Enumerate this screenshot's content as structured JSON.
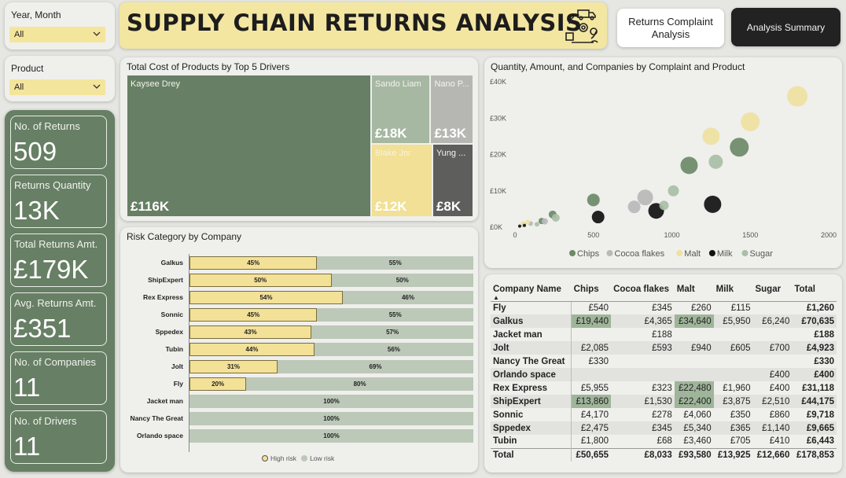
{
  "filters": {
    "year_month": {
      "label": "Year, Month",
      "value": "All"
    },
    "product": {
      "label": "Product",
      "value": "All"
    }
  },
  "header": {
    "title": "SUPPLY CHAIN RETURNS ANALYSIS",
    "icon": "supply-chain-icon"
  },
  "nav": {
    "complaint": "Returns Complaint Analysis",
    "summary": "Analysis Summary"
  },
  "kpis": [
    {
      "label": "No. of Returns",
      "value": "509"
    },
    {
      "label": "Returns Quantity",
      "value": "13K"
    },
    {
      "label": "Total Returns Amt.",
      "value": "£179K"
    },
    {
      "label": "Avg. Returns Amt.",
      "value": "£351"
    },
    {
      "label": "No. of Companies",
      "value": "11"
    },
    {
      "label": "No. of Drivers",
      "value": "11"
    }
  ],
  "colors": {
    "accent": "#677f64",
    "highlight": "#f3e197",
    "low": "#bcc8b8",
    "chips": "#6b8a68",
    "cocoa": "#b9b9b9",
    "malt": "#efe19f",
    "milk": "#111111",
    "sugar": "#a9bfa6"
  },
  "chart_data": [
    {
      "type": "treemap",
      "title": "Total Cost of Products by Top 5 Drivers",
      "items": [
        {
          "name": "Kaysee Drey",
          "label": "£116K",
          "value": 116
        },
        {
          "name": "Sando Liam",
          "label": "£18K",
          "value": 18
        },
        {
          "name": "Nano P...",
          "label": "£13K",
          "value": 13
        },
        {
          "name": "Blake Jnr",
          "label": "£12K",
          "value": 12
        },
        {
          "name": "Yung ...",
          "label": "£8K",
          "value": 8
        }
      ]
    },
    {
      "type": "bar",
      "stacked": true,
      "title": "Risk Category by Company",
      "categories": [
        "Galkus",
        "ShipExpert",
        "Rex Express",
        "Sonnic",
        "Sppedex",
        "Tubin",
        "Jolt",
        "Fly",
        "Jacket man",
        "Nancy The Great",
        "Orlando space"
      ],
      "series": [
        {
          "name": "High risk",
          "values": [
            45,
            50,
            54,
            45,
            43,
            44,
            31,
            20,
            0,
            0,
            0
          ]
        },
        {
          "name": "Low risk",
          "values": [
            55,
            50,
            46,
            55,
            57,
            56,
            69,
            80,
            100,
            100,
            100
          ]
        }
      ],
      "legend": "bottom-center"
    },
    {
      "type": "scatter",
      "title": "Quantity, Amount, and Companies by Complaint and Product",
      "x_ticks": [
        "0",
        "500",
        "1000",
        "1500",
        "2000"
      ],
      "y_ticks": [
        "£0K",
        "£10K",
        "£20K",
        "£30K",
        "£40K"
      ],
      "xlim": [
        0,
        2000
      ],
      "ylim": [
        0,
        40000
      ],
      "legend": "bottom-center",
      "series": [
        {
          "name": "Chips",
          "points": [
            [
              240,
              3500,
              5
            ],
            [
              500,
              7500,
              8
            ],
            [
              1110,
              17000,
              11
            ],
            [
              1430,
              22000,
              12
            ],
            [
              170,
              1700,
              4
            ]
          ]
        },
        {
          "name": "Cocoa flakes",
          "points": [
            [
              100,
              1000,
              3
            ],
            [
              190,
              1600,
              4
            ],
            [
              760,
              5600,
              8
            ],
            [
              830,
              8200,
              10
            ],
            [
              55,
              700,
              3
            ]
          ]
        },
        {
          "name": "Malt",
          "points": [
            [
              1250,
              25000,
              11
            ],
            [
              1500,
              29000,
              12
            ],
            [
              1800,
              36000,
              13
            ],
            [
              50,
              1000,
              3
            ],
            [
              80,
              1400,
              3
            ]
          ]
        },
        {
          "name": "Milk",
          "points": [
            [
              530,
              2800,
              8
            ],
            [
              900,
              4500,
              10
            ],
            [
              1260,
              6300,
              11
            ],
            [
              30,
              300,
              2
            ],
            [
              60,
              500,
              2
            ]
          ]
        },
        {
          "name": "Sugar",
          "points": [
            [
              140,
              800,
              3
            ],
            [
              260,
              2600,
              5
            ],
            [
              950,
              6000,
              6
            ],
            [
              1010,
              10000,
              7
            ],
            [
              1280,
              18000,
              9
            ]
          ]
        }
      ]
    },
    {
      "type": "table",
      "columns": [
        "Company Name",
        "Chips",
        "Cocoa flakes",
        "Malt",
        "Milk",
        "Sugar",
        "Total"
      ],
      "rows": [
        [
          "Fly",
          "£540",
          "£345",
          "£260",
          "£115",
          "",
          "£1,260"
        ],
        [
          "Galkus",
          "£19,440",
          "£4,365",
          "£34,640",
          "£5,950",
          "£6,240",
          "£70,635"
        ],
        [
          "Jacket man",
          "",
          "£188",
          "",
          "",
          "",
          "£188"
        ],
        [
          "Jolt",
          "£2,085",
          "£593",
          "£940",
          "£605",
          "£700",
          "£4,923"
        ],
        [
          "Nancy The Great",
          "£330",
          "",
          "",
          "",
          "",
          "£330"
        ],
        [
          "Orlando space",
          "",
          "",
          "",
          "",
          "£400",
          "£400"
        ],
        [
          "Rex Express",
          "£5,955",
          "£323",
          "£22,480",
          "£1,960",
          "£400",
          "£31,118"
        ],
        [
          "ShipExpert",
          "£13,860",
          "£1,530",
          "£22,400",
          "£3,875",
          "£2,510",
          "£44,175"
        ],
        [
          "Sonnic",
          "£4,170",
          "£278",
          "£4,060",
          "£350",
          "£860",
          "£9,718"
        ],
        [
          "Sppedex",
          "£2,475",
          "£345",
          "£5,340",
          "£365",
          "£1,140",
          "£9,665"
        ],
        [
          "Tubin",
          "£1,800",
          "£68",
          "£3,460",
          "£705",
          "£410",
          "£6,443"
        ]
      ],
      "total": [
        "Total",
        "£50,655",
        "£8,033",
        "£93,580",
        "£13,925",
        "£12,660",
        "£178,853"
      ]
    }
  ]
}
